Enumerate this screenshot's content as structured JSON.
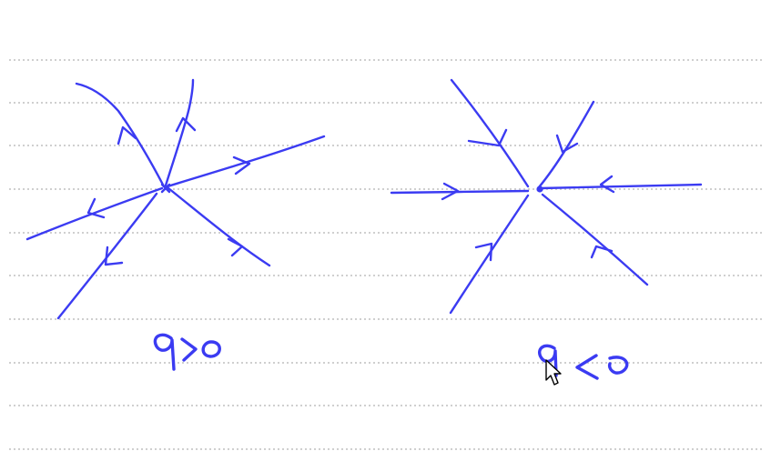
{
  "colors": {
    "ink": "#3b3bf2",
    "rule": "#cfcfcf",
    "background": "#ffffff",
    "cursor": "#000000"
  },
  "diagrams": [
    {
      "caption": "q>0",
      "node": "source",
      "trajectory_directions": [
        "outward",
        "outward",
        "outward",
        "outward",
        "outward",
        "outward"
      ]
    },
    {
      "caption": "q<0",
      "node": "sink",
      "trajectory_directions": [
        "inward",
        "inward",
        "inward",
        "inward",
        "inward",
        "inward"
      ]
    }
  ],
  "icons": {
    "pointer": "mouse-pointer-icon"
  }
}
